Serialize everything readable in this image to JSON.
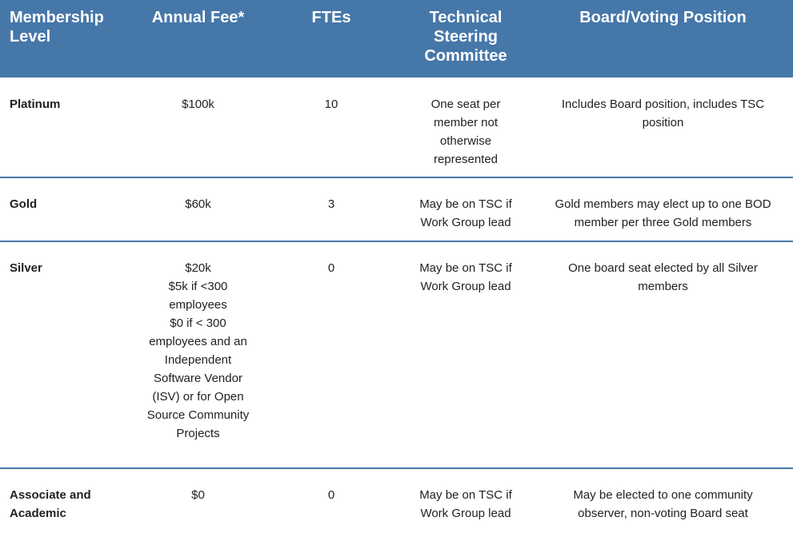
{
  "table": {
    "header": [
      "Membership Level",
      "Annual Fee*",
      "FTEs",
      "Technical Steering Committee",
      "Board/Voting Position"
    ],
    "rows": [
      [
        "Platinum",
        [
          "$100k"
        ],
        "10",
        "One seat per member not otherwise represented",
        "Includes Board position, includes TSC position"
      ],
      [
        "Gold",
        [
          "$60k"
        ],
        "3",
        "May be on TSC if Work Group lead",
        "Gold members may elect up to one BOD member per three Gold members"
      ],
      [
        "Silver",
        [
          "$20k",
          "$5k if <300 employees",
          "$0 if < 300 employees and an Independent Software Vendor (ISV) or for Open Source Community Projects"
        ],
        "0",
        "May be on TSC if Work Group lead",
        "One board seat elected by all Silver members"
      ],
      [
        "Associate and Academic",
        [
          "$0"
        ],
        "0",
        "May be on TSC if Work Group lead",
        "May be elected to one community observer, non-voting Board seat"
      ]
    ]
  }
}
